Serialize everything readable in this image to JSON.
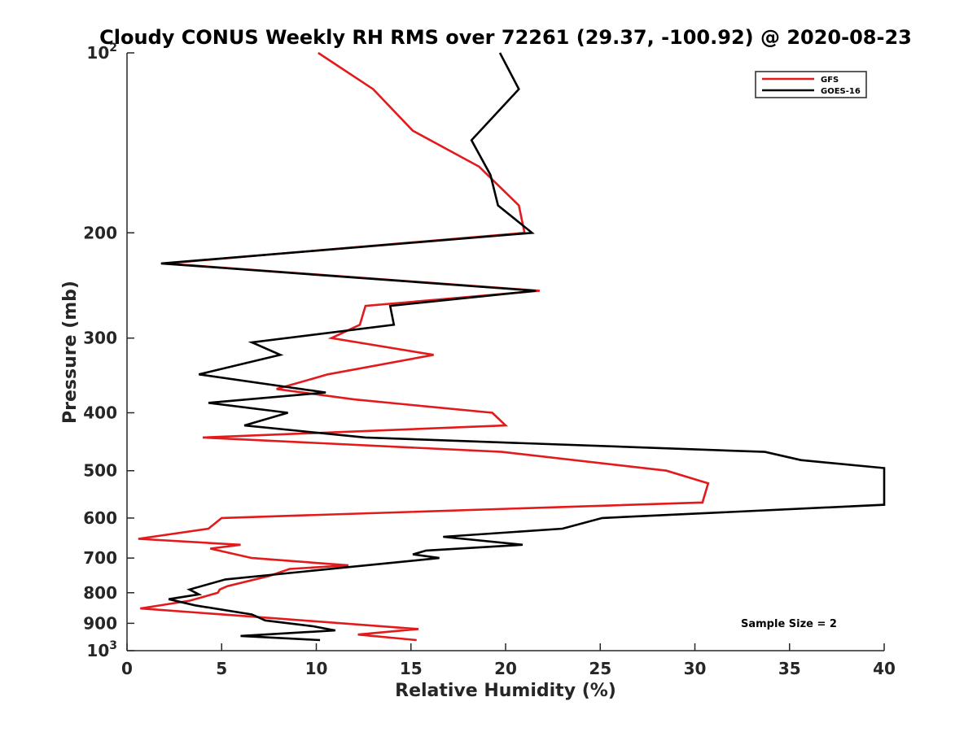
{
  "chart_data": {
    "type": "line",
    "title": "Cloudy CONUS Weekly RH RMS over 72261 (29.37, -100.92) @ 2020-08-23",
    "xlabel": "Relative Humidity (%)",
    "ylabel": "Pressure (mb)",
    "xlim": [
      0,
      40
    ],
    "ylim": [
      100,
      1000
    ],
    "y_scale": "log",
    "y_reversed": true,
    "grid": false,
    "legend_position": "top-right",
    "x_ticks": [
      "0",
      "5",
      "10",
      "15",
      "20",
      "25",
      "30",
      "35",
      "40"
    ],
    "x_tick_values": [
      0,
      5,
      10,
      15,
      20,
      25,
      30,
      35,
      40
    ],
    "y_ticks": [
      {
        "value": 100,
        "base": "10",
        "sup": "2"
      },
      {
        "value": 200,
        "base": "200",
        "sup": ""
      },
      {
        "value": 300,
        "base": "300",
        "sup": ""
      },
      {
        "value": 400,
        "base": "400",
        "sup": ""
      },
      {
        "value": 500,
        "base": "500",
        "sup": ""
      },
      {
        "value": 600,
        "base": "600",
        "sup": ""
      },
      {
        "value": 700,
        "base": "700",
        "sup": ""
      },
      {
        "value": 800,
        "base": "800",
        "sup": ""
      },
      {
        "value": 900,
        "base": "900",
        "sup": ""
      },
      {
        "value": 1000,
        "base": "10",
        "sup": "3"
      }
    ],
    "series": [
      {
        "name": "GFS",
        "color": "#e31a1c",
        "points": [
          [
            10.1,
            100
          ],
          [
            13.0,
            115
          ],
          [
            15.1,
            135
          ],
          [
            18.6,
            155
          ],
          [
            20.7,
            180
          ],
          [
            21.0,
            200
          ],
          [
            2.0,
            225
          ],
          [
            21.8,
            250
          ],
          [
            12.6,
            265
          ],
          [
            12.3,
            285
          ],
          [
            10.8,
            300
          ],
          [
            16.2,
            320
          ],
          [
            10.6,
            345
          ],
          [
            7.9,
            365
          ],
          [
            12.0,
            380
          ],
          [
            19.3,
            400
          ],
          [
            20.0,
            420
          ],
          [
            4.0,
            440
          ],
          [
            19.8,
            465
          ],
          [
            28.5,
            500
          ],
          [
            30.7,
            525
          ],
          [
            30.4,
            565
          ],
          [
            5.0,
            600
          ],
          [
            4.3,
            625
          ],
          [
            0.6,
            650
          ],
          [
            6.0,
            665
          ],
          [
            4.4,
            675
          ],
          [
            6.6,
            700
          ],
          [
            11.7,
            720
          ],
          [
            8.6,
            730
          ],
          [
            7.5,
            750
          ],
          [
            5.3,
            780
          ],
          [
            4.9,
            790
          ],
          [
            4.8,
            800
          ],
          [
            3.3,
            825
          ],
          [
            0.7,
            850
          ],
          [
            6.2,
            875
          ],
          [
            15.4,
            920
          ],
          [
            12.2,
            940
          ],
          [
            15.3,
            960
          ]
        ]
      },
      {
        "name": "GOES-16",
        "color": "#000000",
        "points": [
          [
            19.7,
            100
          ],
          [
            20.7,
            115
          ],
          [
            18.2,
            140
          ],
          [
            19.2,
            160
          ],
          [
            19.6,
            180
          ],
          [
            21.4,
            200
          ],
          [
            1.8,
            225
          ],
          [
            21.6,
            250
          ],
          [
            13.9,
            265
          ],
          [
            14.1,
            285
          ],
          [
            6.6,
            305
          ],
          [
            8.1,
            320
          ],
          [
            3.8,
            345
          ],
          [
            10.5,
            370
          ],
          [
            4.3,
            385
          ],
          [
            8.5,
            400
          ],
          [
            6.2,
            420
          ],
          [
            12.6,
            440
          ],
          [
            33.7,
            465
          ],
          [
            35.6,
            480
          ],
          [
            40.0,
            495
          ],
          [
            40.0,
            570
          ],
          [
            25.1,
            600
          ],
          [
            23.0,
            625
          ],
          [
            16.7,
            645
          ],
          [
            20.9,
            665
          ],
          [
            15.8,
            680
          ],
          [
            15.1,
            690
          ],
          [
            16.5,
            700
          ],
          [
            5.2,
            760
          ],
          [
            3.3,
            790
          ],
          [
            3.8,
            805
          ],
          [
            2.2,
            820
          ],
          [
            3.6,
            840
          ],
          [
            6.6,
            870
          ],
          [
            7.3,
            890
          ],
          [
            9.8,
            910
          ],
          [
            11.0,
            925
          ],
          [
            6.0,
            945
          ],
          [
            10.2,
            960
          ]
        ]
      }
    ],
    "annotation": "Sample Size = 2"
  }
}
